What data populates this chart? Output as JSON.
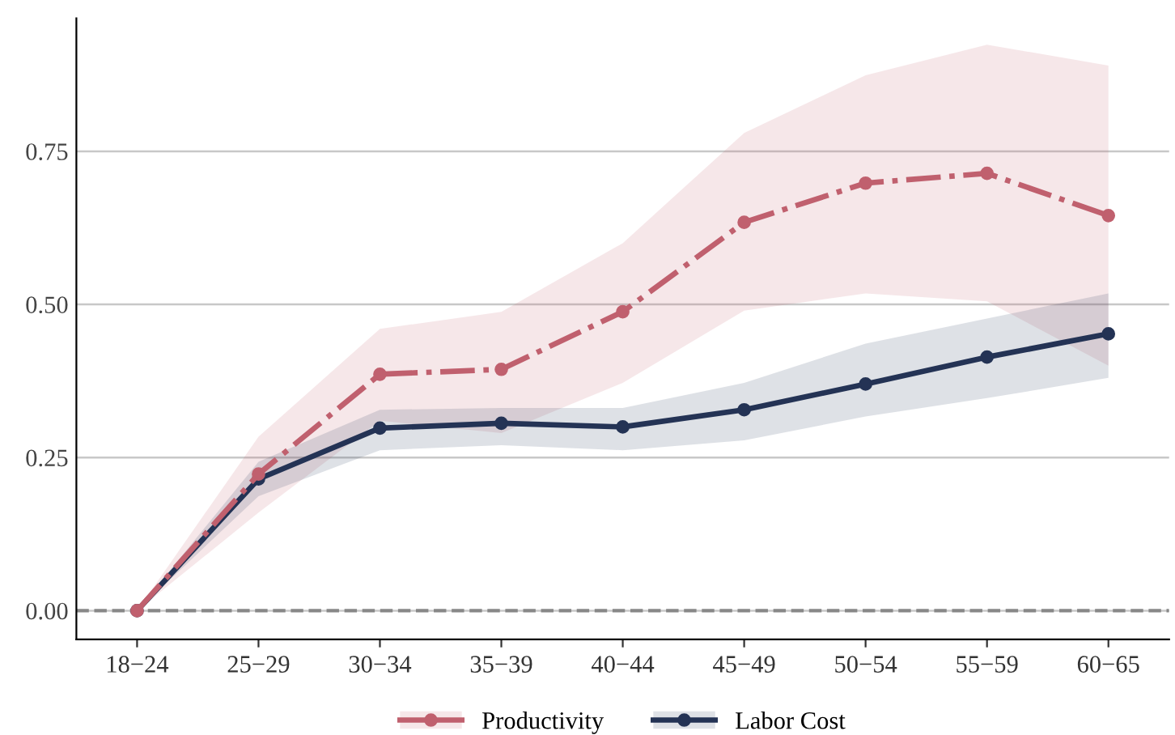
{
  "chart_data": {
    "type": "line",
    "categories": [
      "18−24",
      "25−29",
      "30−34",
      "35−39",
      "40−44",
      "45−49",
      "50−54",
      "55−59",
      "60−65"
    ],
    "series": [
      {
        "name": "Productivity",
        "color": "#c0606e",
        "line_style": "dashdot",
        "values": [
          0,
          0.223,
          0.386,
          0.394,
          0.488,
          0.634,
          0.698,
          0.714,
          0.645
        ],
        "lower": [
          0,
          0.16,
          0.31,
          0.29,
          0.372,
          0.49,
          0.518,
          0.505,
          0.4
        ],
        "upper": [
          0,
          0.284,
          0.46,
          0.488,
          0.6,
          0.78,
          0.874,
          0.924,
          0.89
        ]
      },
      {
        "name": "Labor Cost",
        "color": "#243355",
        "line_style": "solid",
        "values": [
          0,
          0.215,
          0.298,
          0.306,
          0.3,
          0.328,
          0.37,
          0.414,
          0.452
        ],
        "lower": [
          0,
          0.187,
          0.262,
          0.27,
          0.262,
          0.278,
          0.317,
          0.347,
          0.38
        ],
        "upper": [
          0,
          0.243,
          0.328,
          0.331,
          0.331,
          0.372,
          0.436,
          0.477,
          0.518
        ]
      }
    ],
    "ylim": [
      -0.047,
      0.967
    ],
    "yticks": [
      {
        "value": 0,
        "label": "0.00"
      },
      {
        "value": 0.25,
        "label": "0.25"
      },
      {
        "value": 0.5,
        "label": "0.50"
      },
      {
        "value": 0.75,
        "label": "0.75"
      }
    ],
    "grid": "y",
    "marker": "circle",
    "legend": "bottom",
    "ref_lines": [
      {
        "axis": "y",
        "value": 0,
        "color": "#888888",
        "line_style": "dashed"
      }
    ]
  }
}
